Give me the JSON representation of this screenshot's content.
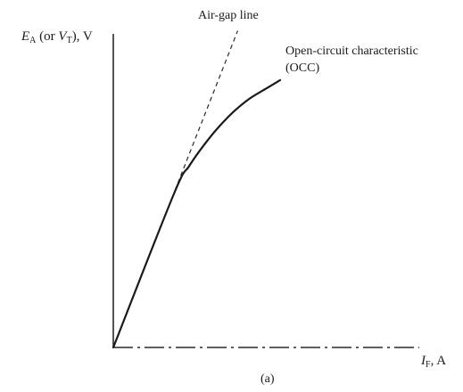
{
  "chart_data": {
    "type": "line",
    "panel_label": "(a)",
    "xlabel": {
      "symbol": "I",
      "subscript": "F",
      "unit_suffix": ", A"
    },
    "ylabel": {
      "symbol": "E",
      "subscript": "A",
      "middle": " (or ",
      "symbol2": "V",
      "subscript2": "T",
      "unit_suffix": "), V"
    },
    "xlim": [
      0,
      1
    ],
    "ylim": [
      0,
      1
    ],
    "grid": false,
    "series": [
      {
        "name": "Air-gap line",
        "style": "dashed",
        "x": [
          0,
          0.41
        ],
        "y": [
          0,
          1.03
        ]
      },
      {
        "name_line1": "Open-circuit characteristic",
        "name_line2": "(OCC)",
        "style": "solid",
        "x": [
          0,
          0.2,
          0.25,
          0.3,
          0.35,
          0.4,
          0.45,
          0.5,
          0.55
        ],
        "y": [
          0,
          0.5,
          0.59,
          0.66,
          0.72,
          0.77,
          0.81,
          0.84,
          0.87
        ]
      }
    ]
  }
}
